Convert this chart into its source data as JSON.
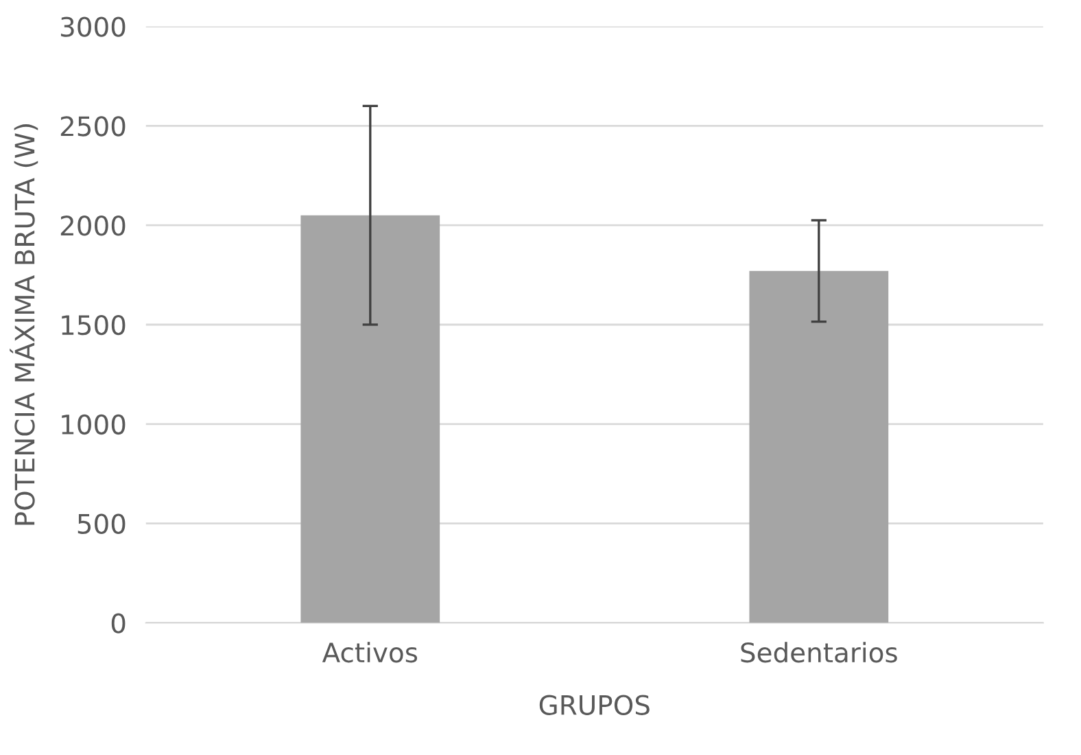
{
  "chart_data": {
    "type": "bar",
    "xlabel": "GRUPOS",
    "ylabel": "POTENCIA MÁXIMA BRUTA (W)",
    "categories": [
      "Activos",
      "Sedentarios"
    ],
    "values": [
      2050,
      1770
    ],
    "errors": [
      550,
      255
    ],
    "color": "#a5a5a5",
    "ylim": [
      0,
      3000
    ],
    "yticks": [
      0,
      500,
      1000,
      1500,
      2000,
      2500,
      3000
    ],
    "grid": "y"
  }
}
